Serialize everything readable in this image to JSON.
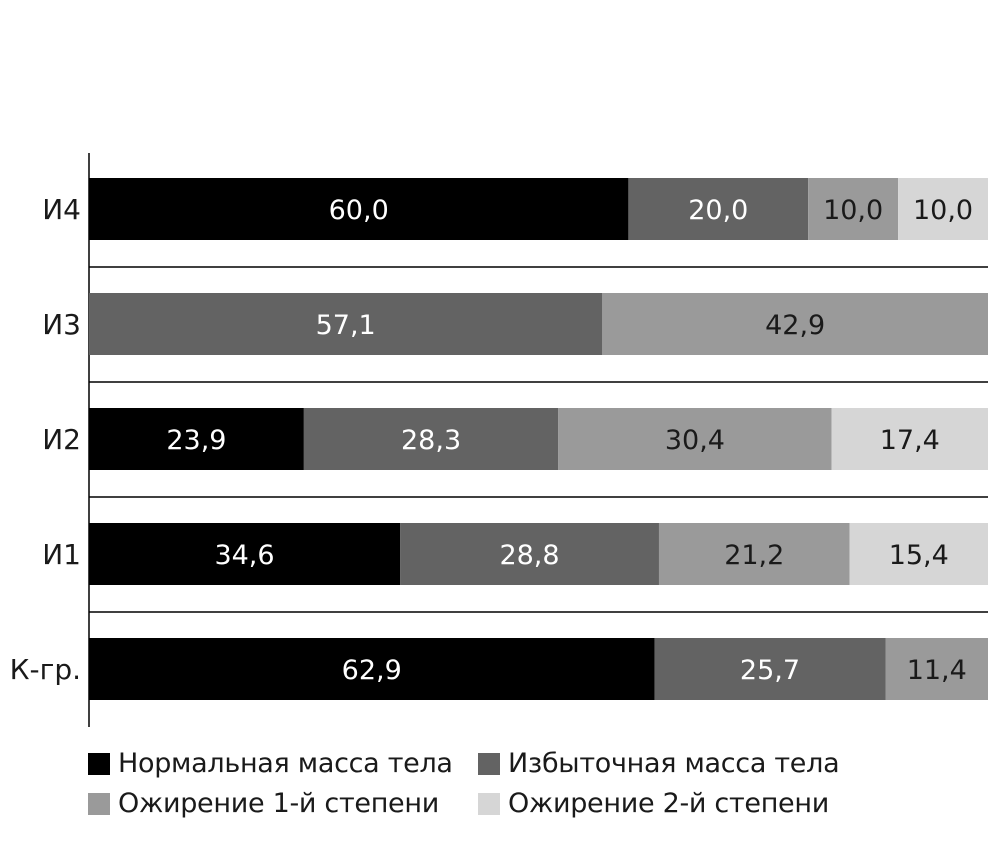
{
  "chart_data": {
    "type": "bar",
    "orientation": "horizontal",
    "stacked": true,
    "title": "",
    "xlabel": "",
    "ylabel": "",
    "xlim": [
      0,
      100
    ],
    "categories": [
      "И4",
      "И3",
      "И2",
      "И1",
      "К-гр."
    ],
    "series": [
      {
        "name": "Нормальная масса тела",
        "color": "#000000",
        "label_color": "#ffffff",
        "values": [
          60.0,
          0,
          23.9,
          34.6,
          62.9
        ],
        "labels": [
          "60,0",
          "",
          "23,9",
          "34,6",
          "62,9"
        ]
      },
      {
        "name": "Избыточная масса тела",
        "color": "#636363",
        "label_color": "#ffffff",
        "values": [
          20.0,
          57.1,
          28.3,
          28.8,
          25.7
        ],
        "labels": [
          "20,0",
          "57,1",
          "28,3",
          "28,8",
          "25,7"
        ]
      },
      {
        "name": "Ожирение 1-й степени",
        "color": "#9a9a9a",
        "label_color": "#1a1a1a",
        "values": [
          10.0,
          42.9,
          30.4,
          21.2,
          11.4
        ],
        "labels": [
          "10,0",
          "42,9",
          "30,4",
          "21,2",
          "11,4"
        ]
      },
      {
        "name": "Ожирение 2-й степени",
        "color": "#d6d6d6",
        "label_color": "#1a1a1a",
        "values": [
          10.0,
          0,
          17.4,
          15.4,
          0
        ],
        "labels": [
          "10,0",
          "",
          "17,4",
          "15,4",
          ""
        ]
      }
    ],
    "grid": false,
    "legend_position": "bottom"
  },
  "legend": {
    "items": [
      {
        "label": "Нормальная масса тела",
        "color": "#000000"
      },
      {
        "label": "Избыточная масса тела",
        "color": "#636363"
      },
      {
        "label": "Ожирение 1-й степени",
        "color": "#9a9a9a"
      },
      {
        "label": "Ожирение 2-й степени",
        "color": "#d6d6d6"
      }
    ]
  }
}
